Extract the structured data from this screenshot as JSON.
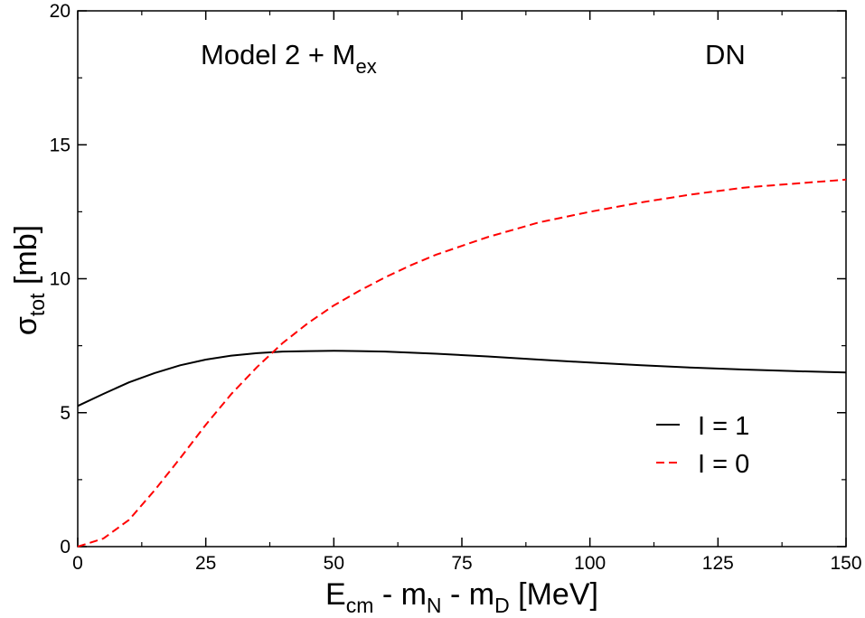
{
  "chart_data": {
    "type": "line",
    "title": "",
    "annotations": {
      "model_main": "Model 2 + M",
      "model_sub": "ex",
      "system": "DN"
    },
    "xlabel": {
      "prefix": "E",
      "sub1": "cm",
      "mid1": " - m",
      "sub2": "N",
      "mid2": " - m",
      "sub3": "D",
      "suffix": " [MeV]"
    },
    "ylabel": {
      "symbol": "σ",
      "sub": "tot",
      "suffix": " [mb]"
    },
    "xlim": [
      0,
      150
    ],
    "ylim": [
      0,
      20
    ],
    "x_ticks": [
      0,
      25,
      50,
      75,
      100,
      125,
      150
    ],
    "y_ticks": [
      0,
      5,
      10,
      15,
      20
    ],
    "legend_position": "lower-right",
    "series": [
      {
        "name": "I = 1",
        "color": "#000000",
        "dash": "solid",
        "x": [
          0,
          5,
          10,
          15,
          20,
          25,
          30,
          35,
          40,
          45,
          50,
          55,
          60,
          70,
          80,
          90,
          100,
          110,
          120,
          130,
          140,
          150
        ],
        "y": [
          5.25,
          5.7,
          6.13,
          6.48,
          6.77,
          6.98,
          7.13,
          7.22,
          7.28,
          7.3,
          7.31,
          7.3,
          7.28,
          7.2,
          7.1,
          6.98,
          6.87,
          6.77,
          6.68,
          6.61,
          6.55,
          6.5
        ]
      },
      {
        "name": "I = 0",
        "color": "#ff0000",
        "dash": "dashed",
        "x": [
          0,
          5,
          10,
          15,
          20,
          25,
          30,
          35,
          40,
          45,
          50,
          55,
          60,
          65,
          70,
          80,
          90,
          100,
          110,
          120,
          130,
          140,
          150
        ],
        "y": [
          0.0,
          0.3,
          1.0,
          2.1,
          3.3,
          4.55,
          5.7,
          6.7,
          7.6,
          8.35,
          9.0,
          9.55,
          10.05,
          10.5,
          10.9,
          11.55,
          12.1,
          12.5,
          12.85,
          13.15,
          13.4,
          13.55,
          13.7
        ]
      }
    ]
  }
}
